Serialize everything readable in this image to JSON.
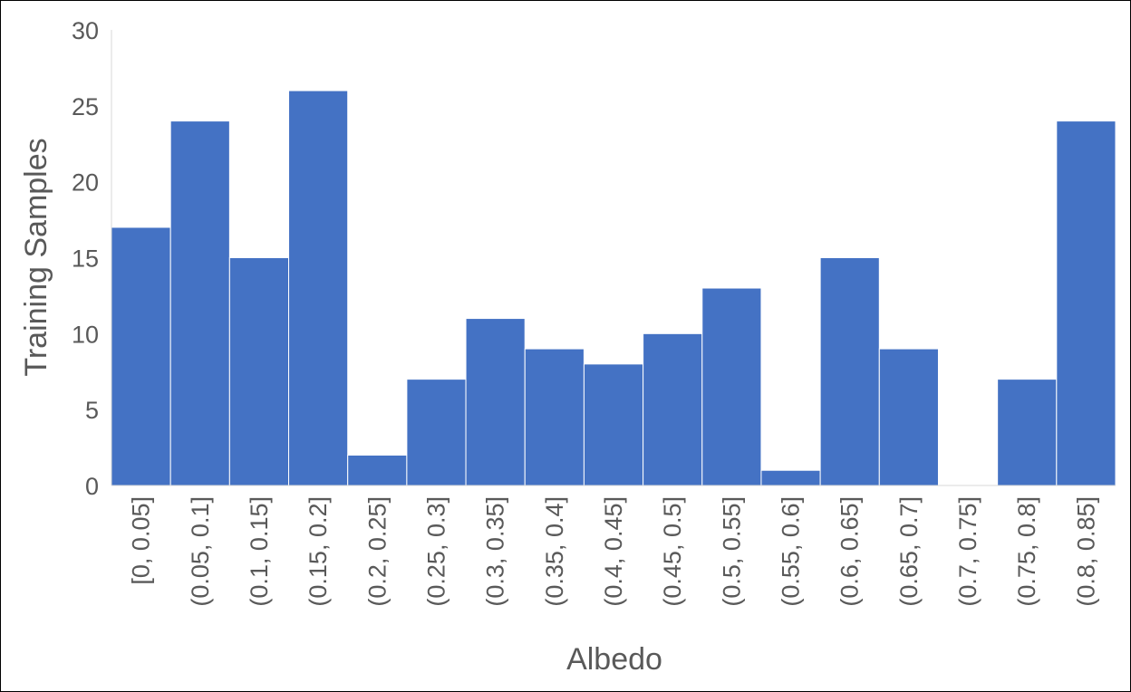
{
  "chart_data": {
    "type": "bar",
    "title": "",
    "xlabel": "Albedo",
    "ylabel": "Training Samples",
    "categories": [
      "[0, 0.05]",
      "(0.05, 0.1]",
      "(0.1, 0.15]",
      "(0.15, 0.2]",
      "(0.2, 0.25]",
      "(0.25, 0.3]",
      "(0.3, 0.35]",
      "(0.35, 0.4]",
      "(0.4, 0.45]",
      "(0.45, 0.5]",
      "(0.5, 0.55]",
      "(0.55, 0.6]",
      "(0.6, 0.65]",
      "(0.65, 0.7]",
      "(0.7, 0.75]",
      "(0.75, 0.8]",
      "(0.8, 0.85]"
    ],
    "values": [
      17,
      24,
      15,
      26,
      2,
      7,
      11,
      9,
      8,
      10,
      13,
      1,
      15,
      9,
      0,
      7,
      24
    ],
    "ylim": [
      0,
      30
    ],
    "yticks": [
      "0",
      "5",
      "10",
      "15",
      "20",
      "25",
      "30"
    ],
    "grid": false,
    "legend": "none",
    "colors": {
      "bar": "#4472C4",
      "bar_edge": "#ffffff",
      "axis": "#d9d9d9",
      "text": "#595959"
    }
  }
}
